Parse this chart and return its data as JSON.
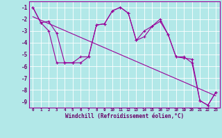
{
  "xlabel": "Windchill (Refroidissement éolien,°C)",
  "bg_color": "#b2e8e8",
  "grid_color": "#c8e8e0",
  "line_color": "#990099",
  "text_color": "#660066",
  "ylim": [
    -9.5,
    -0.5
  ],
  "xlim": [
    -0.5,
    23.5
  ],
  "yticks": [
    -1,
    -2,
    -3,
    -4,
    -5,
    -6,
    -7,
    -8,
    -9
  ],
  "xticks": [
    0,
    1,
    2,
    3,
    4,
    5,
    6,
    7,
    8,
    9,
    10,
    11,
    12,
    13,
    14,
    15,
    16,
    17,
    18,
    19,
    20,
    21,
    22,
    23
  ],
  "data_y1": [
    -1,
    -2.3,
    -2.2,
    -3.2,
    -5.7,
    -5.7,
    -5.7,
    -5.2,
    -2.5,
    -2.4,
    -1.3,
    -1.0,
    -1.5,
    -3.8,
    -3.0,
    -2.6,
    -2.0,
    -3.3,
    -5.2,
    -5.2,
    -5.7,
    -8.9,
    -9.3,
    -8.2
  ],
  "data_y2": [
    -1,
    -2.3,
    -3.0,
    -5.7,
    -5.7,
    -5.7,
    -5.2,
    -5.2,
    -2.5,
    -2.4,
    -1.3,
    -1.0,
    -1.5,
    -3.8,
    -3.5,
    -2.6,
    -2.2,
    -3.3,
    -5.2,
    -5.3,
    -5.4,
    -8.9,
    -9.3,
    -8.2
  ],
  "trend_x": [
    0,
    23
  ],
  "trend_y": [
    -1.8,
    -8.5
  ]
}
